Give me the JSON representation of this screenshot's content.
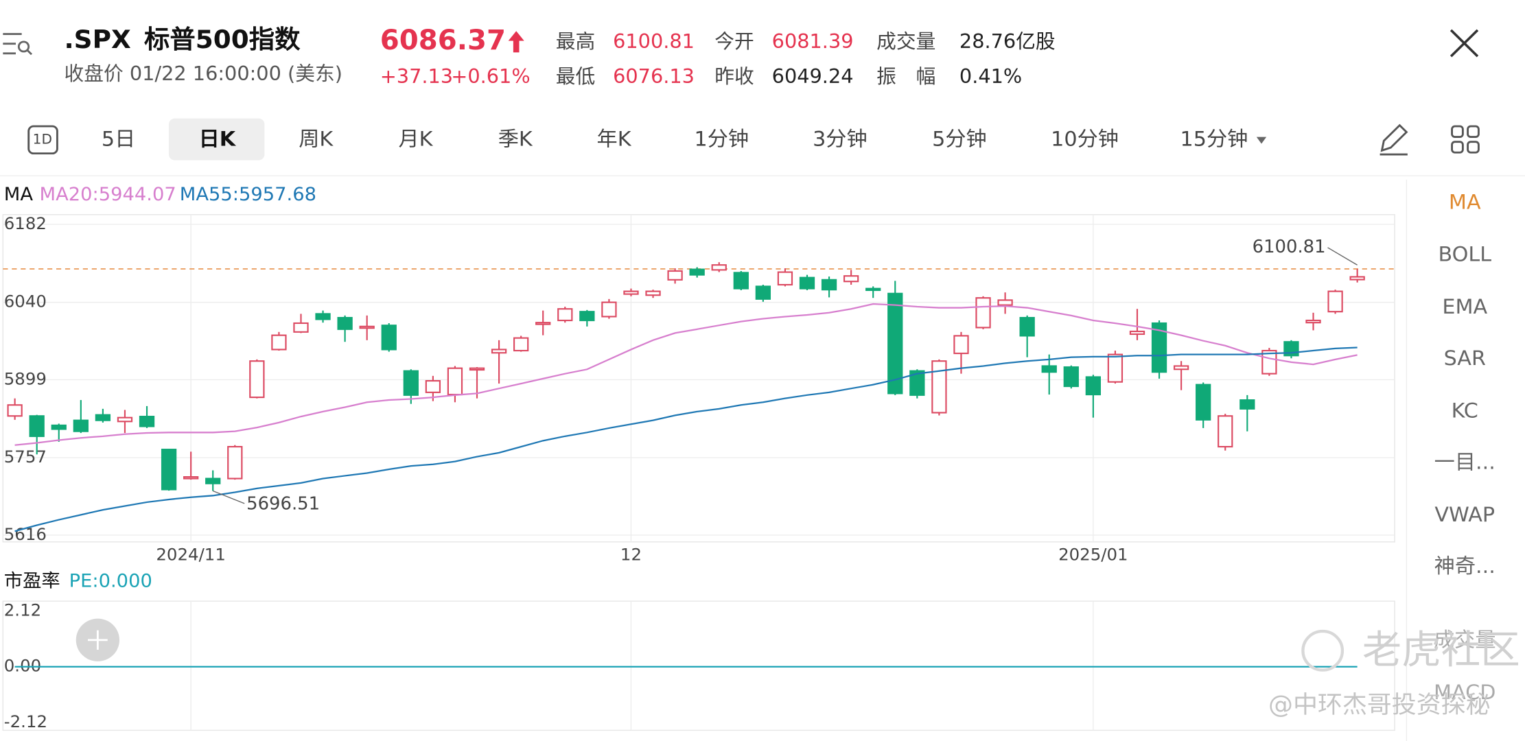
{
  "header": {
    "symbol": ".SPX",
    "name": "标普500指数",
    "price": "6086.37",
    "time": "收盘价 01/22 16:00:00 (美东)",
    "change": "+37.13",
    "change_pct": "+0.61%",
    "stats": [
      {
        "label": "最高",
        "value": "6100.81",
        "tone": "up"
      },
      {
        "label": "今开",
        "value": "6081.39",
        "tone": "up"
      },
      {
        "label": "成交量",
        "value": "28.76亿股",
        "tone": "plain"
      },
      {
        "label": "最低",
        "value": "6076.13",
        "tone": "up"
      },
      {
        "label": "昨收",
        "value": "6049.24",
        "tone": "plain"
      },
      {
        "label": "振　幅",
        "value": "0.41%",
        "tone": "plain"
      }
    ]
  },
  "tabs": [
    "1D",
    "5日",
    "日K",
    "周K",
    "月K",
    "季K",
    "年K",
    "1分钟",
    "3分钟",
    "5分钟",
    "10分钟",
    "15分钟"
  ],
  "selected_tab": 2,
  "indicators": [
    "MA",
    "BOLL",
    "EMA",
    "SAR",
    "KC",
    "一目...",
    "VWAP",
    "神奇...",
    "成交量",
    "MACD"
  ],
  "selected_indicator": 0,
  "watermark": [
    "老虎社区",
    "@中环杰哥投资探秘"
  ],
  "chart_data": [
    {
      "type": "candlestick",
      "legend_title": "MA",
      "up_color": "#dc4a62",
      "down_color": "#10a977",
      "candles": {
        "open": [
          5833,
          5833,
          5816,
          5825,
          5835,
          5823,
          5832,
          5772,
          5719,
          5719,
          5719,
          5867,
          5954,
          5986,
          6019,
          6012,
          5993,
          5998,
          5915,
          5876,
          5872,
          5917,
          5948,
          5952,
          6000,
          6007,
          6023,
          6014,
          6055,
          6053,
          6081,
          6100,
          6099,
          6094,
          6069,
          6072,
          6085,
          6081,
          6078,
          6065,
          6056,
          5915,
          5839,
          5947,
          5994,
          6035,
          6012,
          5924,
          5922,
          5904,
          5895,
          5982,
          6002,
          5918,
          5890,
          5777,
          5862,
          5910,
          5968,
          6003,
          6023,
          6081.39
        ],
        "high": [
          5865,
          5835,
          5819,
          5862,
          5846,
          5844,
          5851,
          5773,
          5768,
          5734,
          5780,
          5936,
          5986,
          6019,
          6025,
          6016,
          6016,
          6002,
          5918,
          5906,
          5924,
          5922,
          5971,
          5979,
          6025,
          6032,
          6026,
          6046,
          6065,
          6063,
          6102,
          6104,
          6113,
          6097,
          6072,
          6102,
          6090,
          6087,
          6099,
          6069,
          6079,
          5918,
          5936,
          5986,
          6051,
          6058,
          6016,
          5945,
          5925,
          5908,
          5952,
          6028,
          6007,
          5933,
          5894,
          5837,
          5871,
          5957,
          5971,
          6021,
          6063,
          6100.81
        ],
        "low": [
          5826,
          5763,
          5786,
          5802,
          5821,
          5802,
          5811,
          5697,
          5717,
          5696.51,
          5717,
          5865,
          5952,
          5984,
          6003,
          5968,
          5971,
          5950,
          5855,
          5860,
          5858,
          5865,
          5892,
          5950,
          5980,
          6003,
          5996,
          6010,
          6051,
          6048,
          6074,
          6085,
          6095,
          6062,
          6041,
          6069,
          6062,
          6049,
          6072,
          6048,
          5871,
          5865,
          5834,
          5910,
          5991,
          6019,
          5940,
          5872,
          5883,
          5830,
          5892,
          5971,
          5901,
          5880,
          5811,
          5770,
          5805,
          5906,
          5938,
          5989,
          6019,
          6076.13
        ],
        "close": [
          5853,
          5796,
          5809,
          5805,
          5825,
          5830,
          5814,
          5699,
          5722,
          5710,
          5777,
          5933,
          5980,
          6002,
          6009,
          5991,
          5996,
          5954,
          5871,
          5897,
          5920,
          5920,
          5954,
          5975,
          6003,
          6028,
          6007,
          6040,
          6060,
          6060,
          6097,
          6090,
          6108,
          6065,
          6046,
          6095,
          6065,
          6063,
          6088,
          6062,
          5874,
          5871,
          5933,
          5979,
          6048,
          6044,
          5979,
          5913,
          5887,
          5872,
          5945,
          5987,
          5913,
          5924,
          5826,
          5833,
          5846,
          5952,
          5943,
          6007,
          6060,
          6086.37
        ]
      },
      "series": [
        {
          "name": "MA20:5944.07",
          "color": "#d77fce",
          "values": [
            5780,
            5784,
            5789,
            5793,
            5796,
            5800,
            5802,
            5803,
            5803,
            5803,
            5805,
            5812,
            5821,
            5832,
            5841,
            5849,
            5858,
            5862,
            5864,
            5867,
            5871,
            5874,
            5883,
            5892,
            5901,
            5910,
            5918,
            5936,
            5954,
            5971,
            5984,
            5991,
            5998,
            6005,
            6010,
            6014,
            6017,
            6021,
            6028,
            6037,
            6035,
            6032,
            6030,
            6030,
            6032,
            6033,
            6030,
            6023,
            6016,
            6007,
            6002,
            5996,
            5989,
            5980,
            5970,
            5961,
            5948,
            5938,
            5931,
            5927,
            5936,
            5944.07
          ]
        },
        {
          "name": "MA55:5957.68",
          "color": "#1f78b4",
          "values": [
            5623,
            5634,
            5644,
            5653,
            5662,
            5669,
            5676,
            5681,
            5685,
            5688,
            5694,
            5701,
            5706,
            5711,
            5719,
            5724,
            5729,
            5736,
            5742,
            5745,
            5750,
            5759,
            5766,
            5777,
            5788,
            5796,
            5803,
            5811,
            5818,
            5825,
            5834,
            5841,
            5846,
            5853,
            5858,
            5865,
            5871,
            5876,
            5883,
            5890,
            5899,
            5910,
            5915,
            5920,
            5924,
            5929,
            5933,
            5936,
            5940,
            5941,
            5941,
            5943,
            5943,
            5945,
            5945,
            5945,
            5945,
            5947,
            5948,
            5952,
            5956,
            5957.68
          ]
        }
      ],
      "ylim": [
        5616,
        6182
      ],
      "yticks": [
        6182,
        6040,
        5899,
        5757,
        5616
      ],
      "xlim": [
        -0.54,
        62.7
      ],
      "xticks": [
        {
          "value": 8,
          "label": "2024/11"
        },
        {
          "value": 28,
          "label": "12"
        },
        {
          "value": 49,
          "label": "2025/01"
        }
      ],
      "grid": true,
      "high_line_color": "#e8904a"
    },
    {
      "type": "line",
      "title": "市盈率",
      "series": [
        {
          "name": "PE:0.000",
          "color": "#1aa3b5",
          "values": [
            0,
            0,
            0,
            0,
            0,
            0,
            0,
            0,
            0,
            0,
            0,
            0,
            0,
            0,
            0,
            0,
            0,
            0,
            0,
            0,
            0,
            0,
            0,
            0,
            0,
            0,
            0,
            0,
            0,
            0,
            0,
            0,
            0,
            0,
            0,
            0,
            0,
            0,
            0,
            0,
            0,
            0,
            0,
            0,
            0,
            0,
            0,
            0,
            0,
            0,
            0,
            0,
            0,
            0,
            0,
            0,
            0,
            0,
            0,
            0,
            0,
            0
          ]
        }
      ],
      "ylim": [
        -2.12,
        2.12
      ],
      "yticks": [
        2.12,
        {
          "value": 0,
          "label": "0.00"
        },
        -2.12
      ],
      "xlim": [
        -0.54,
        62.7
      ],
      "grid": true
    }
  ]
}
